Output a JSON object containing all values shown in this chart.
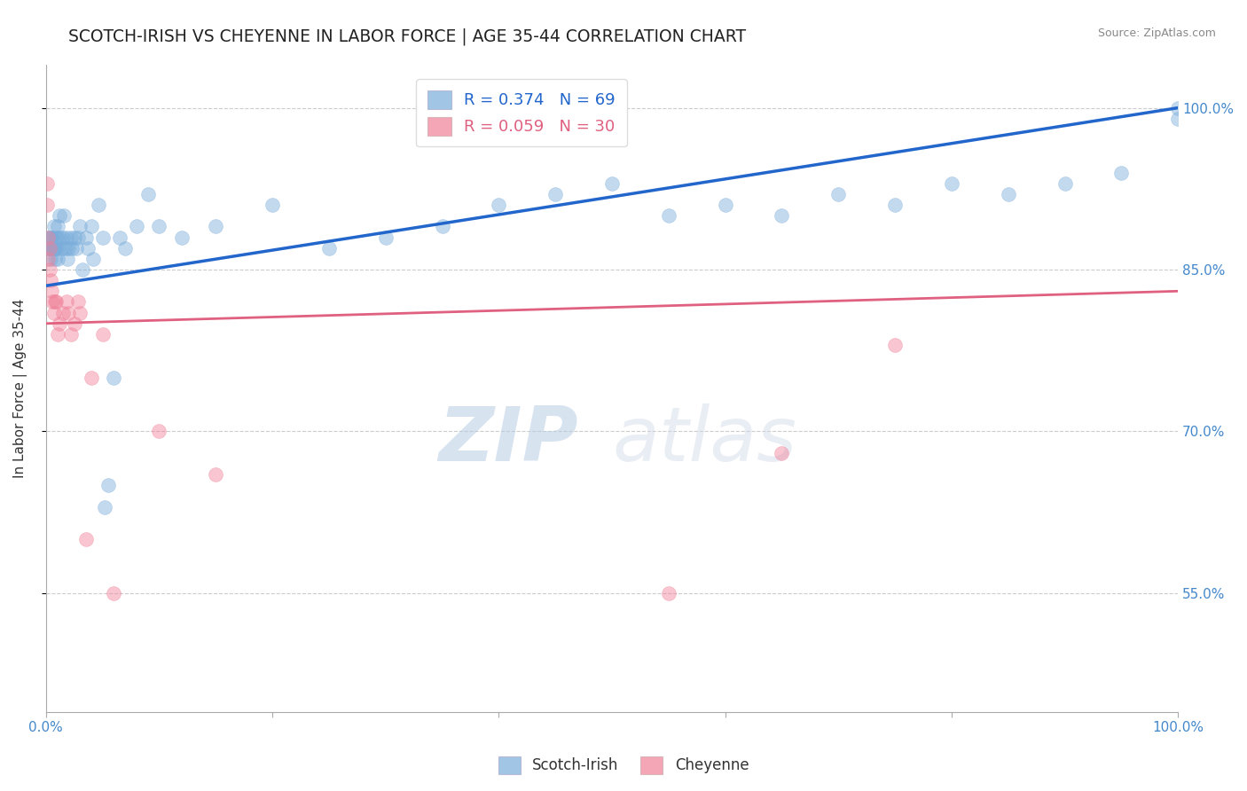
{
  "title": "SCOTCH-IRISH VS CHEYENNE IN LABOR FORCE | AGE 35-44 CORRELATION CHART",
  "source_text": "Source: ZipAtlas.com",
  "ylabel": "In Labor Force | Age 35-44",
  "x_tick_labels": [
    "0.0%",
    "",
    "",
    "",
    "",
    "100.0%"
  ],
  "x_tick_positions": [
    0.0,
    0.2,
    0.4,
    0.6,
    0.8,
    1.0
  ],
  "y_tick_labels_right": [
    "100.0%",
    "85.0%",
    "70.0%",
    "55.0%"
  ],
  "y_tick_vals_right": [
    1.0,
    0.85,
    0.7,
    0.55
  ],
  "xlim": [
    0.0,
    1.0
  ],
  "ylim": [
    0.44,
    1.04
  ],
  "legend_scotch_irish": "R = 0.374   N = 69",
  "legend_cheyenne": "R = 0.059   N = 30",
  "blue_color": "#7aaddb",
  "pink_color": "#f08098",
  "blue_line_color": "#2266cc",
  "pink_line_color": "#e06080",
  "watermark_zip": "ZIP",
  "watermark_atlas": "atlas",
  "scotch_irish_x": [
    0.001,
    0.002,
    0.003,
    0.003,
    0.004,
    0.005,
    0.005,
    0.006,
    0.006,
    0.007,
    0.007,
    0.008,
    0.008,
    0.009,
    0.009,
    0.01,
    0.01,
    0.01,
    0.01,
    0.012,
    0.013,
    0.014,
    0.015,
    0.016,
    0.017,
    0.018,
    0.019,
    0.02,
    0.022,
    0.023,
    0.025,
    0.027,
    0.028,
    0.03,
    0.032,
    0.035,
    0.037,
    0.04,
    0.042,
    0.046,
    0.05,
    0.052,
    0.055,
    0.06,
    0.065,
    0.07,
    0.08,
    0.09,
    0.1,
    0.12,
    0.15,
    0.2,
    0.25,
    0.3,
    0.35,
    0.4,
    0.45,
    0.5,
    0.55,
    0.6,
    0.65,
    0.7,
    0.75,
    0.8,
    0.85,
    0.9,
    0.95,
    1.0,
    1.0
  ],
  "scotch_irish_y": [
    0.88,
    0.87,
    0.88,
    0.87,
    0.86,
    0.87,
    0.88,
    0.87,
    0.88,
    0.87,
    0.89,
    0.86,
    0.87,
    0.88,
    0.87,
    0.86,
    0.87,
    0.88,
    0.89,
    0.9,
    0.88,
    0.87,
    0.88,
    0.9,
    0.87,
    0.88,
    0.86,
    0.87,
    0.88,
    0.87,
    0.88,
    0.87,
    0.88,
    0.89,
    0.85,
    0.88,
    0.87,
    0.89,
    0.86,
    0.91,
    0.88,
    0.63,
    0.65,
    0.75,
    0.88,
    0.87,
    0.89,
    0.92,
    0.89,
    0.88,
    0.89,
    0.91,
    0.87,
    0.88,
    0.89,
    0.91,
    0.92,
    0.93,
    0.9,
    0.91,
    0.9,
    0.92,
    0.91,
    0.93,
    0.92,
    0.93,
    0.94,
    0.99,
    1.0
  ],
  "cheyenne_x": [
    0.001,
    0.001,
    0.002,
    0.002,
    0.003,
    0.003,
    0.004,
    0.005,
    0.006,
    0.007,
    0.008,
    0.009,
    0.01,
    0.012,
    0.015,
    0.018,
    0.02,
    0.022,
    0.025,
    0.028,
    0.03,
    0.035,
    0.04,
    0.05,
    0.06,
    0.1,
    0.15,
    0.55,
    0.65,
    0.75
  ],
  "cheyenne_y": [
    0.93,
    0.91,
    0.88,
    0.86,
    0.87,
    0.85,
    0.84,
    0.83,
    0.82,
    0.81,
    0.82,
    0.82,
    0.79,
    0.8,
    0.81,
    0.82,
    0.81,
    0.79,
    0.8,
    0.82,
    0.81,
    0.6,
    0.75,
    0.79,
    0.55,
    0.7,
    0.66,
    0.55,
    0.68,
    0.78
  ],
  "scotch_trendline_x": [
    0.0,
    1.0
  ],
  "scotch_trendline_y": [
    0.835,
    1.0
  ],
  "cheyenne_trendline_x": [
    0.0,
    1.0
  ],
  "cheyenne_trendline_y": [
    0.8,
    0.83
  ],
  "grid_color": "#cccccc",
  "background_color": "#ffffff",
  "title_fontsize": 13.5,
  "axis_label_fontsize": 11,
  "tick_fontsize": 11,
  "legend_fontsize": 13,
  "marker_size": 130,
  "marker_alpha": 0.45
}
